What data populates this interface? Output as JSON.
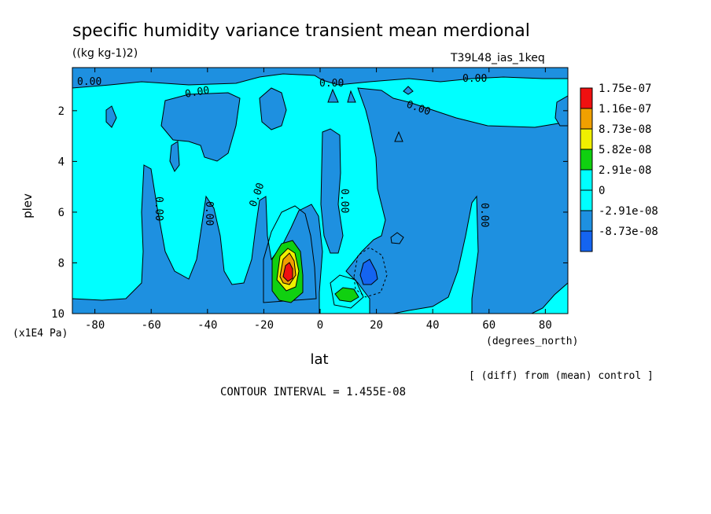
{
  "chart_data": {
    "type": "heatmap",
    "title": "specific humidity variance transient mean merdional",
    "units": "((kg kg-1)2)",
    "run_label": "T39L48_ias_1keq",
    "xlabel": "lat",
    "x_units": "(degrees_north)",
    "ylabel": "plev",
    "y_units": "(x1E4 Pa)",
    "x_ticks": [
      "-80",
      "-60",
      "-40",
      "-20",
      "0",
      "20",
      "40",
      "60",
      "80"
    ],
    "x_tick_values": [
      -80,
      -60,
      -40,
      -20,
      0,
      20,
      40,
      60,
      80
    ],
    "y_ticks": [
      "2",
      "4",
      "6",
      "8",
      "10"
    ],
    "y_tick_values": [
      2,
      4,
      6,
      8,
      10
    ],
    "xlim": [
      -88,
      88
    ],
    "ylim": [
      10,
      0.3
    ],
    "contour_interval_text": "CONTOUR INTERVAL = 1.455E-08",
    "footnote": "[ (diff) from (mean) control ]",
    "contour_labels": [
      "0.00",
      "0.00",
      "0.00",
      "0.00",
      "0.00",
      "0.00",
      "0.00",
      "0.00",
      "0.00",
      "0.00"
    ],
    "legend": {
      "labels": [
        "1.75e-07",
        "1.16e-07",
        "8.73e-08",
        "5.82e-08",
        "2.91e-08",
        "0",
        "-2.91e-08",
        "-8.73e-08"
      ],
      "colors": [
        "#f01010",
        "#f0a000",
        "#f0f000",
        "#10d010",
        "#00ffff",
        "#00ffff",
        "#1e90e0",
        "#1464f0"
      ]
    },
    "colors": {
      "background": "#00ffff",
      "negative": "#1e90e0",
      "strong_negative": "#1464f0",
      "positive_low": "#10d010",
      "positive_mid": "#f0f000",
      "positive_high": "#f0a000",
      "positive_max": "#f01010"
    }
  }
}
